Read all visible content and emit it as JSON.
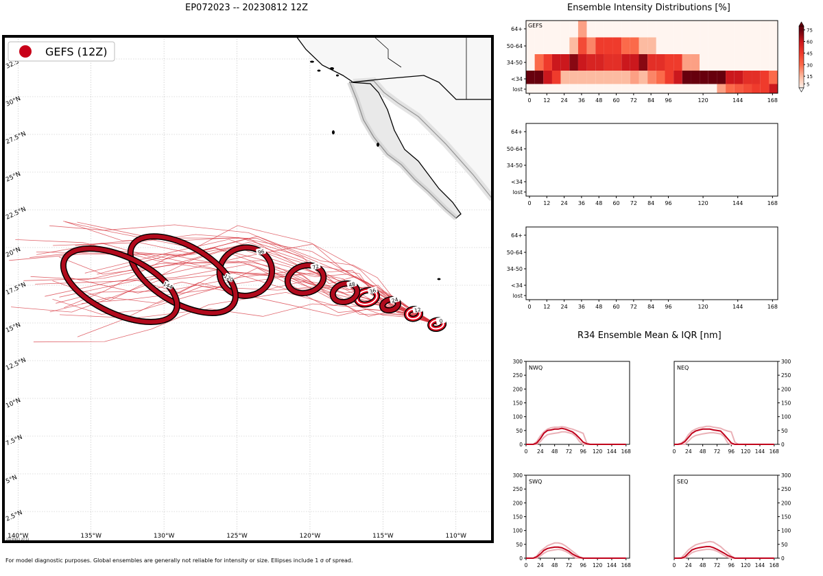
{
  "header": {
    "main_title": "EP072023 -- 20230812 12Z",
    "intensity_title": "Ensemble Intensity Distributions [%]",
    "r34_title": "R34 Ensemble Mean & IQR [nm]"
  },
  "map": {
    "legend_label": "GEFS (12Z)",
    "timestamp": "20230812 20:13",
    "footer": "For model diagnostic purposes. Global ensembles are generally not reliable for intensity or size. Ellipses include 1 σ of spread.",
    "lon_ticks": [
      "140°W",
      "135°W",
      "130°W",
      "125°W",
      "120°W",
      "115°W",
      "110°W"
    ],
    "lat_ticks": [
      "2.5°N",
      "5°N",
      "7.5°N",
      "10°N",
      "12.5°N",
      "15°N",
      "17.5°N",
      "20°N",
      "22.5°N",
      "25°N",
      "27.5°N",
      "30°N",
      "32.5°N"
    ],
    "ellipses": [
      {
        "hour": "0",
        "lon": -111.3,
        "lat": 14.9,
        "rx": 0.45,
        "ry": 0.28,
        "rot": -10,
        "filled": false
      },
      {
        "hour": "12",
        "lon": -112.9,
        "lat": 15.6,
        "rx": 0.45,
        "ry": 0.32,
        "rot": -10,
        "filled": false
      },
      {
        "hour": "24",
        "lon": -114.5,
        "lat": 16.2,
        "rx": 0.55,
        "ry": 0.35,
        "rot": -15,
        "filled": true
      },
      {
        "hour": "36",
        "lon": -116.1,
        "lat": 16.7,
        "rx": 0.7,
        "ry": 0.45,
        "rot": -15,
        "filled": false
      },
      {
        "hour": "48",
        "lon": -117.6,
        "lat": 17.0,
        "rx": 0.85,
        "ry": 0.6,
        "rot": -15,
        "filled": true
      },
      {
        "hour": "72",
        "lon": -120.3,
        "lat": 17.9,
        "rx": 1.25,
        "ry": 0.9,
        "rot": -15,
        "filled": true
      },
      {
        "hour": "96",
        "lon": -124.4,
        "lat": 18.4,
        "rx": 1.8,
        "ry": 1.6,
        "rot": -10,
        "filled": true
      },
      {
        "hour": "120",
        "lon": -128.7,
        "lat": 18.2,
        "rx": 4.0,
        "ry": 1.9,
        "rot": 30,
        "filled": true
      },
      {
        "hour": "144",
        "lon": -133.0,
        "lat": 17.5,
        "rx": 4.2,
        "ry": 1.9,
        "rot": 25,
        "filled": true
      }
    ]
  },
  "intensity": {
    "row_labels": [
      "64+",
      "50-64",
      "34-50",
      "<34",
      "lost"
    ],
    "x_ticks": [
      0,
      12,
      24,
      36,
      48,
      60,
      72,
      84,
      96,
      120,
      144,
      168
    ],
    "panels": [
      {
        "label": "GEFS"
      },
      {
        "label": ""
      },
      {
        "label": ""
      }
    ],
    "colorbar_ticks": [
      5,
      15,
      30,
      45,
      60,
      75
    ]
  },
  "r34": {
    "quadrants": [
      {
        "label": "NWQ"
      },
      {
        "label": "NEQ"
      },
      {
        "label": "SWQ"
      },
      {
        "label": "SEQ"
      }
    ],
    "x_ticks": [
      0,
      24,
      48,
      72,
      96,
      120,
      144,
      168
    ],
    "y_ticks": [
      0,
      50,
      100,
      150,
      200,
      250,
      300
    ]
  },
  "chart_data": [
    {
      "type": "scatter",
      "title": "EP072023 -- 20230812 12Z",
      "xlabel": "Longitude",
      "ylabel": "Latitude",
      "xlim": [
        -141,
        -107.5
      ],
      "ylim": [
        0.5,
        34
      ],
      "series": [
        {
          "name": "GEFS (12Z)",
          "x": [
            -111.3,
            -112.9,
            -114.5,
            -116.1,
            -117.6,
            -120.3,
            -124.4,
            -128.7,
            -133.0
          ],
          "y": [
            14.9,
            15.6,
            16.2,
            16.7,
            17.0,
            17.9,
            18.4,
            18.2,
            17.5
          ],
          "labels": [
            "0",
            "12",
            "24",
            "36",
            "48",
            "72",
            "96",
            "120",
            "144"
          ]
        }
      ]
    },
    {
      "type": "heatmap",
      "title": "Ensemble Intensity Distributions [%]",
      "panel": "GEFS",
      "rows": [
        "64+",
        "50-64",
        "34-50",
        "<34",
        "lost"
      ],
      "x": [
        0,
        6,
        12,
        18,
        24,
        30,
        36,
        42,
        48,
        54,
        60,
        66,
        72,
        78,
        84,
        90,
        96,
        102,
        108,
        114,
        120,
        126,
        132,
        138,
        144,
        150,
        156,
        162,
        168
      ],
      "values": [
        [
          0,
          0,
          0,
          0,
          0,
          0,
          20,
          0,
          0,
          0,
          0,
          0,
          0,
          0,
          0,
          0,
          0,
          0,
          0,
          0,
          0,
          0,
          0,
          0,
          0,
          0,
          0,
          0,
          0
        ],
        [
          0,
          0,
          0,
          0,
          0,
          15,
          40,
          25,
          45,
          45,
          45,
          30,
          30,
          15,
          15,
          0,
          0,
          0,
          0,
          0,
          0,
          0,
          0,
          0,
          0,
          0,
          0,
          0,
          0
        ],
        [
          0,
          30,
          45,
          60,
          60,
          70,
          60,
          55,
          55,
          50,
          50,
          60,
          60,
          70,
          50,
          50,
          45,
          45,
          20,
          20,
          0,
          0,
          0,
          0,
          0,
          0,
          0,
          0,
          0
        ],
        [
          75,
          75,
          60,
          45,
          15,
          15,
          15,
          15,
          15,
          15,
          15,
          15,
          20,
          15,
          25,
          30,
          45,
          60,
          75,
          75,
          75,
          75,
          75,
          60,
          60,
          50,
          50,
          45,
          30
        ],
        [
          0,
          0,
          0,
          0,
          0,
          0,
          0,
          0,
          0,
          0,
          0,
          0,
          0,
          0,
          0,
          0,
          0,
          0,
          0,
          0,
          0,
          0,
          20,
          30,
          35,
          40,
          45,
          45,
          60
        ]
      ]
    },
    {
      "type": "line",
      "title": "R34 Ensemble Mean & IQR [nm]",
      "x": [
        0,
        6,
        12,
        18,
        24,
        30,
        36,
        42,
        48,
        54,
        60,
        66,
        72,
        78,
        84,
        90,
        96,
        102,
        108,
        114,
        120,
        126,
        132,
        138,
        144,
        150,
        156,
        162,
        168
      ],
      "ylim": [
        0,
        300
      ],
      "quadrants": [
        {
          "name": "NWQ",
          "mean": [
            0,
            0,
            0,
            5,
            20,
            40,
            50,
            52,
            55,
            55,
            58,
            55,
            50,
            45,
            35,
            22,
            8,
            2,
            0,
            0,
            0,
            0,
            0,
            0,
            0,
            0,
            0,
            0,
            0
          ],
          "q25": [
            0,
            0,
            0,
            0,
            10,
            25,
            35,
            38,
            40,
            42,
            45,
            45,
            42,
            38,
            28,
            10,
            0,
            0,
            0,
            0,
            0,
            0,
            0,
            0,
            0,
            0,
            0,
            0,
            0
          ],
          "q75": [
            0,
            0,
            0,
            10,
            30,
            45,
            55,
            60,
            62,
            62,
            64,
            62,
            58,
            55,
            50,
            45,
            40,
            5,
            0,
            0,
            0,
            0,
            0,
            0,
            0,
            0,
            0,
            0,
            0
          ]
        },
        {
          "name": "NEQ",
          "mean": [
            0,
            0,
            2,
            10,
            25,
            40,
            48,
            52,
            55,
            55,
            55,
            52,
            50,
            48,
            35,
            20,
            5,
            0,
            0,
            0,
            0,
            0,
            0,
            0,
            0,
            0,
            0,
            0,
            0
          ],
          "q25": [
            0,
            0,
            0,
            0,
            12,
            25,
            32,
            35,
            38,
            40,
            42,
            42,
            40,
            38,
            28,
            5,
            0,
            0,
            0,
            0,
            0,
            0,
            0,
            0,
            0,
            0,
            0,
            0,
            0
          ],
          "q75": [
            0,
            0,
            5,
            15,
            35,
            48,
            55,
            60,
            62,
            65,
            65,
            62,
            60,
            58,
            52,
            48,
            45,
            8,
            0,
            0,
            0,
            0,
            0,
            0,
            0,
            0,
            0,
            0,
            0
          ]
        },
        {
          "name": "SWQ",
          "mean": [
            0,
            0,
            0,
            5,
            15,
            28,
            35,
            38,
            40,
            40,
            38,
            32,
            25,
            15,
            8,
            3,
            0,
            0,
            0,
            0,
            0,
            0,
            0,
            0,
            0,
            0,
            0,
            0,
            0
          ],
          "q25": [
            0,
            0,
            0,
            0,
            8,
            18,
            25,
            28,
            30,
            32,
            30,
            25,
            18,
            8,
            0,
            0,
            0,
            0,
            0,
            0,
            0,
            0,
            0,
            0,
            0,
            0,
            0,
            0,
            0
          ],
          "q75": [
            0,
            0,
            0,
            8,
            25,
            35,
            45,
            50,
            55,
            55,
            52,
            45,
            35,
            25,
            15,
            5,
            0,
            0,
            0,
            0,
            0,
            0,
            0,
            0,
            0,
            0,
            0,
            0,
            0
          ]
        },
        {
          "name": "SEQ",
          "mean": [
            0,
            0,
            0,
            5,
            18,
            30,
            35,
            38,
            40,
            42,
            42,
            38,
            32,
            25,
            18,
            10,
            5,
            0,
            0,
            0,
            0,
            0,
            0,
            0,
            0,
            0,
            0,
            0,
            0
          ],
          "q25": [
            0,
            0,
            0,
            0,
            10,
            20,
            25,
            28,
            30,
            32,
            32,
            30,
            25,
            18,
            10,
            3,
            0,
            0,
            0,
            0,
            0,
            0,
            0,
            0,
            0,
            0,
            0,
            0,
            0
          ],
          "q75": [
            0,
            0,
            2,
            15,
            30,
            40,
            48,
            52,
            55,
            58,
            60,
            58,
            50,
            42,
            30,
            20,
            8,
            0,
            0,
            0,
            0,
            0,
            0,
            0,
            0,
            0,
            0,
            0,
            0
          ]
        }
      ]
    }
  ]
}
